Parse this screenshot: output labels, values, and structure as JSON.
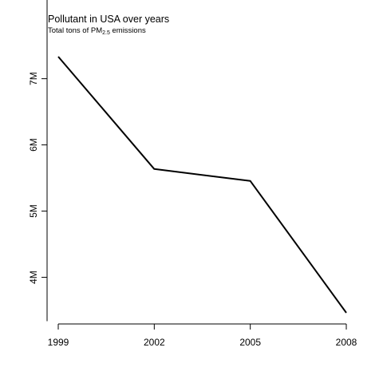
{
  "chart_data": {
    "type": "line",
    "title": "Pollutant in USA over years",
    "subtitle": {
      "prefix": "Total tons of PM",
      "subscript": "2.5",
      "suffix": " emissions"
    },
    "xlabel": "",
    "ylabel": "",
    "x": [
      1999,
      2002,
      2005,
      2008
    ],
    "series": [
      {
        "values": [
          7332967,
          5635780,
          5454703,
          3464206
        ]
      }
    ],
    "x_ticks": [
      {
        "value": 1999,
        "label": "1999"
      },
      {
        "value": 2002,
        "label": "2002"
      },
      {
        "value": 2005,
        "label": "2005"
      },
      {
        "value": 2008,
        "label": "2008"
      }
    ],
    "y_ticks": [
      {
        "value": 4000000,
        "label": "4M"
      },
      {
        "value": 5000000,
        "label": "5M"
      },
      {
        "value": 6000000,
        "label": "6M"
      },
      {
        "value": 7000000,
        "label": "7M"
      }
    ],
    "xlim": [
      1999,
      2008
    ],
    "ylim": [
      3464206,
      7332967
    ],
    "grid": false,
    "legend": "none",
    "line_color": "#000000"
  }
}
